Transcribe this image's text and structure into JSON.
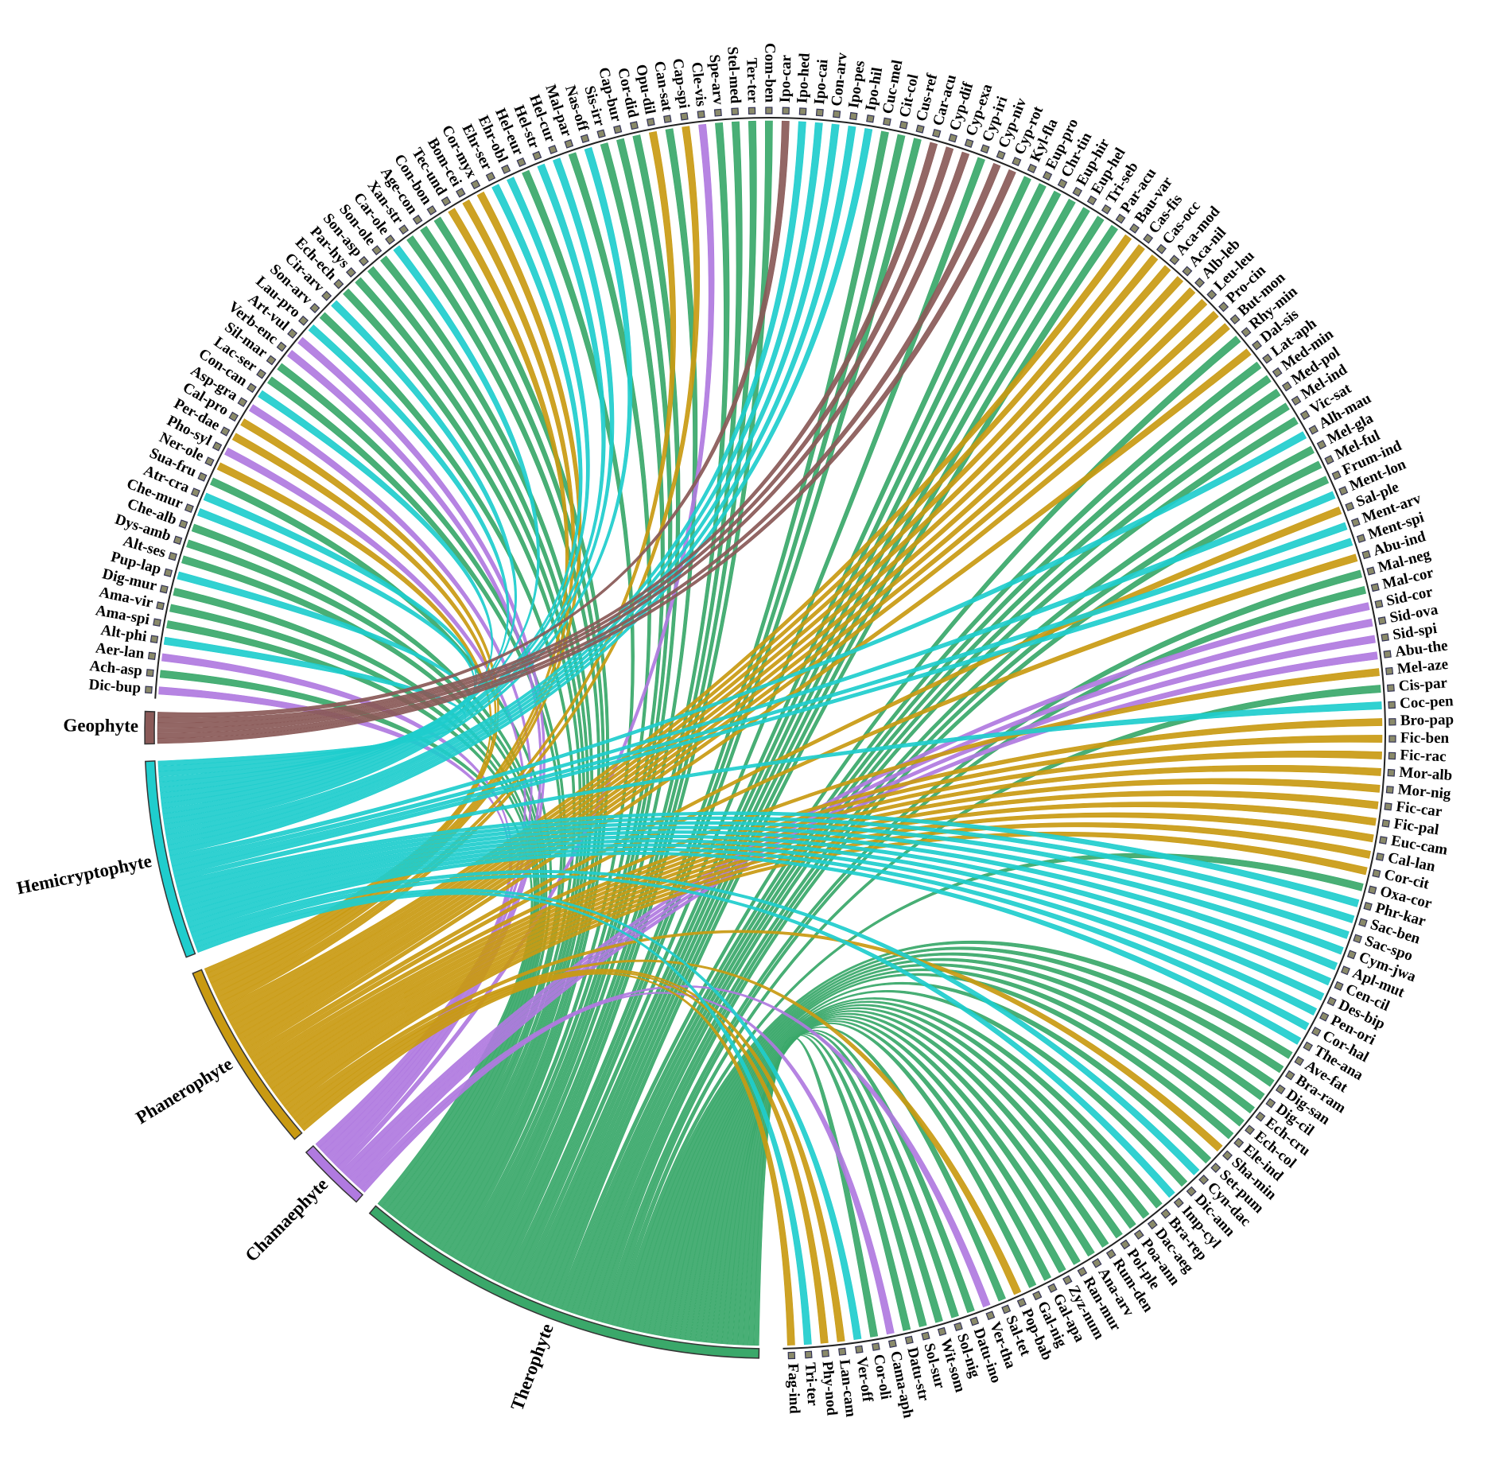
{
  "chart_data": {
    "type": "chord",
    "groups": [
      {
        "name": "Therophyte",
        "color": "#3aa86a"
      },
      {
        "name": "Chamaephyte",
        "color": "#b07ae0"
      },
      {
        "name": "Phanerophyte",
        "color": "#c99a12"
      },
      {
        "name": "Hemicryptophyte",
        "color": "#1fcdcd"
      },
      {
        "name": "Geophyte",
        "color": "#8a5a58"
      }
    ],
    "species": [
      "Dic-bup",
      "Ach-asp",
      "Aer-lan",
      "Alt-phi",
      "Ama-spi",
      "Ama-vir",
      "Dig-mur",
      "Pup-lap",
      "Alt-ses",
      "Dys-amb",
      "Che-alb",
      "Che-mur",
      "Atr-cra",
      "Sua-fru",
      "Ner-ole",
      "Pho-syl",
      "Per-dae",
      "Cal-pro",
      "Asp-gra",
      "Con-can",
      "Lac-ser",
      "Sil-mar",
      "Verb-enc",
      "Art-vul",
      "Lau-pro",
      "Son-arv",
      "Cir-arv",
      "Ech-ech",
      "Par-hys",
      "Son-asp",
      "Son-ole",
      "Car-ole",
      "Xan-str",
      "Age-con",
      "Con-bon",
      "Tec-und",
      "Bom-cei",
      "Cor-myx",
      "Ehr-ser",
      "Ehr-obl",
      "Hel-eur",
      "Hel-str",
      "Hel-cur",
      "Mal-par",
      "Nas-off",
      "Sis-irr",
      "Cap-bur",
      "Cor-did",
      "Opu-dil",
      "Can-sat",
      "Cap-spi",
      "Cle-vis",
      "Spe-arv",
      "Stel-med",
      "Ter-ter",
      "Com-ben",
      "Ipo-car",
      "Ipo-hed",
      "Ipo-cai",
      "Con-arv",
      "Ipo-pes",
      "Ipo-hil",
      "Cuc-mel",
      "Cit-col",
      "Cus-ref",
      "Car-acu",
      "Cyp-dif",
      "Cyp-exa",
      "Cyp-iri",
      "Cyp-niv",
      "Cyp-rot",
      "Kyl-fla",
      "Eup-pro",
      "Chr-tin",
      "Eup-hir",
      "Eup-hel",
      "Tri-seb",
      "Par-acu",
      "Bau-var",
      "Cas-fis",
      "Cas-occ",
      "Aca-mod",
      "Aca-nil",
      "Alb-leb",
      "Leu-leu",
      "Pro-cin",
      "But-mon",
      "Rhy-min",
      "Dal-sis",
      "Lat-aph",
      "Med-min",
      "Med-pol",
      "Mel-ind",
      "Vic-sat",
      "Alh-mau",
      "Mel-gla",
      "Mel-ful",
      "Frum-ind",
      "Ment-lon",
      "Sal-ple",
      "Ment-arv",
      "Ment-spi",
      "Abu-ind",
      "Mal-neg",
      "Mal-cor",
      "Sid-cor",
      "Sid-ova",
      "Sid-spi",
      "Abu-the",
      "Mel-aze",
      "Cis-par",
      "Coc-pen",
      "Bro-pap",
      "Fic-ben",
      "Fic-rac",
      "Mor-alb",
      "Mor-nig",
      "Fic-car",
      "Fic-pal",
      "Euc-cam",
      "Cal-lan",
      "Cor-cit",
      "Oxa-cor",
      "Phr-kar",
      "Sac-ben",
      "Sac-spo",
      "Cym-jwa",
      "Apl-mut",
      "Cen-cil",
      "Des-bip",
      "Pen-ori",
      "Cor-hal",
      "The-ana",
      "Ave-fat",
      "Bra-ram",
      "Dig-san",
      "Dig-cil",
      "Ech-cru",
      "Ech-col",
      "Ele-ind",
      "Sha-min",
      "Set-pum",
      "Cyn-dac",
      "Dic-ann",
      "Imp-cyl",
      "Bra-rep",
      "Dac-aeg",
      "Poa-ann",
      "Pol-ple",
      "Rum-den",
      "Ana-arv",
      "Ran-mur",
      "Zyz-num",
      "Gal-apa",
      "Gal-nig",
      "Pop-bab",
      "Sal-tet",
      "Ver-tha",
      "Datu-ino",
      "Sol-nig",
      "Wit-som",
      "Sol-sur",
      "Datu-str",
      "Cama-aph",
      "Cor-oli",
      "Ver-off",
      "Lan-cam",
      "Phy-nod",
      "Tri-ter",
      "Fag-ind"
    ],
    "species_group": [
      1,
      0,
      1,
      3,
      0,
      0,
      0,
      3,
      0,
      0,
      0,
      3,
      3,
      0,
      2,
      1,
      2,
      2,
      1,
      3,
      0,
      0,
      1,
      1,
      3,
      0,
      3,
      0,
      0,
      0,
      0,
      3,
      0,
      0,
      0,
      2,
      2,
      2,
      3,
      3,
      0,
      3,
      3,
      0,
      3,
      0,
      0,
      0,
      2,
      0,
      2,
      1,
      0,
      0,
      0,
      0,
      4,
      3,
      3,
      3,
      3,
      3,
      0,
      0,
      0,
      4,
      4,
      4,
      0,
      4,
      4,
      0,
      0,
      0,
      0,
      0,
      0,
      0,
      2,
      2,
      2,
      2,
      2,
      2,
      2,
      2,
      2,
      0,
      2,
      0,
      0,
      0,
      0,
      0,
      3,
      0,
      0,
      0,
      3,
      2,
      3,
      3,
      2,
      0,
      0,
      1,
      1,
      1,
      1,
      2,
      0,
      3,
      2,
      2,
      2,
      2,
      2,
      2,
      2,
      2,
      2,
      2,
      0,
      3,
      3,
      3,
      3,
      3,
      3,
      3,
      3,
      3,
      3,
      0,
      0,
      0,
      0,
      0,
      0,
      0,
      2,
      0,
      3,
      0,
      3,
      0,
      0,
      0,
      0,
      0,
      0,
      0,
      0,
      0,
      0,
      2,
      0,
      1,
      0,
      0,
      0,
      0,
      0,
      1,
      0,
      3,
      2,
      2,
      3,
      2
    ]
  }
}
